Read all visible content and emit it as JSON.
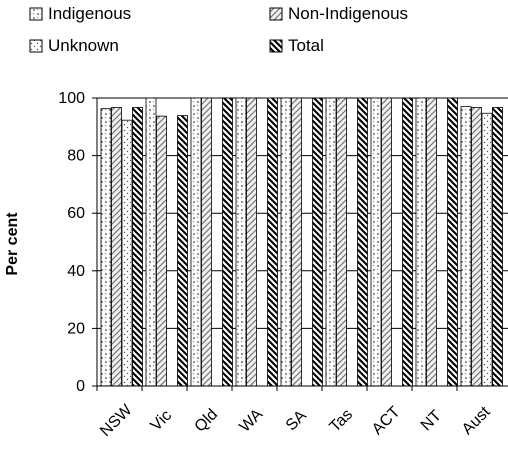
{
  "chart_data": {
    "type": "bar",
    "categories": [
      "NSW",
      "Vic",
      "Qld",
      "WA",
      "SA",
      "Tas",
      "ACT",
      "NT",
      "Aust"
    ],
    "series": [
      {
        "name": "Indigenous",
        "values": [
          96.3,
          100,
          100,
          100,
          100,
          100,
          100,
          100,
          97.0
        ],
        "pattern": "indigenous"
      },
      {
        "name": "Non-Indigenous",
        "values": [
          96.7,
          93.7,
          100,
          100,
          100,
          100,
          100,
          100,
          96.7
        ],
        "pattern": "nonindigenous"
      },
      {
        "name": "Unknown",
        "values": [
          92.3,
          null,
          null,
          null,
          null,
          null,
          null,
          null,
          94.7
        ],
        "pattern": "unknown"
      },
      {
        "name": "Total",
        "values": [
          96.7,
          93.9,
          100,
          100,
          100,
          100,
          100,
          100,
          96.7
        ],
        "pattern": "total"
      }
    ],
    "ylabel": "Per cent",
    "ylim": [
      0,
      100
    ],
    "yticks": [
      0,
      20,
      40,
      60,
      80,
      100
    ],
    "grid": true,
    "legend_position": "top-left"
  }
}
